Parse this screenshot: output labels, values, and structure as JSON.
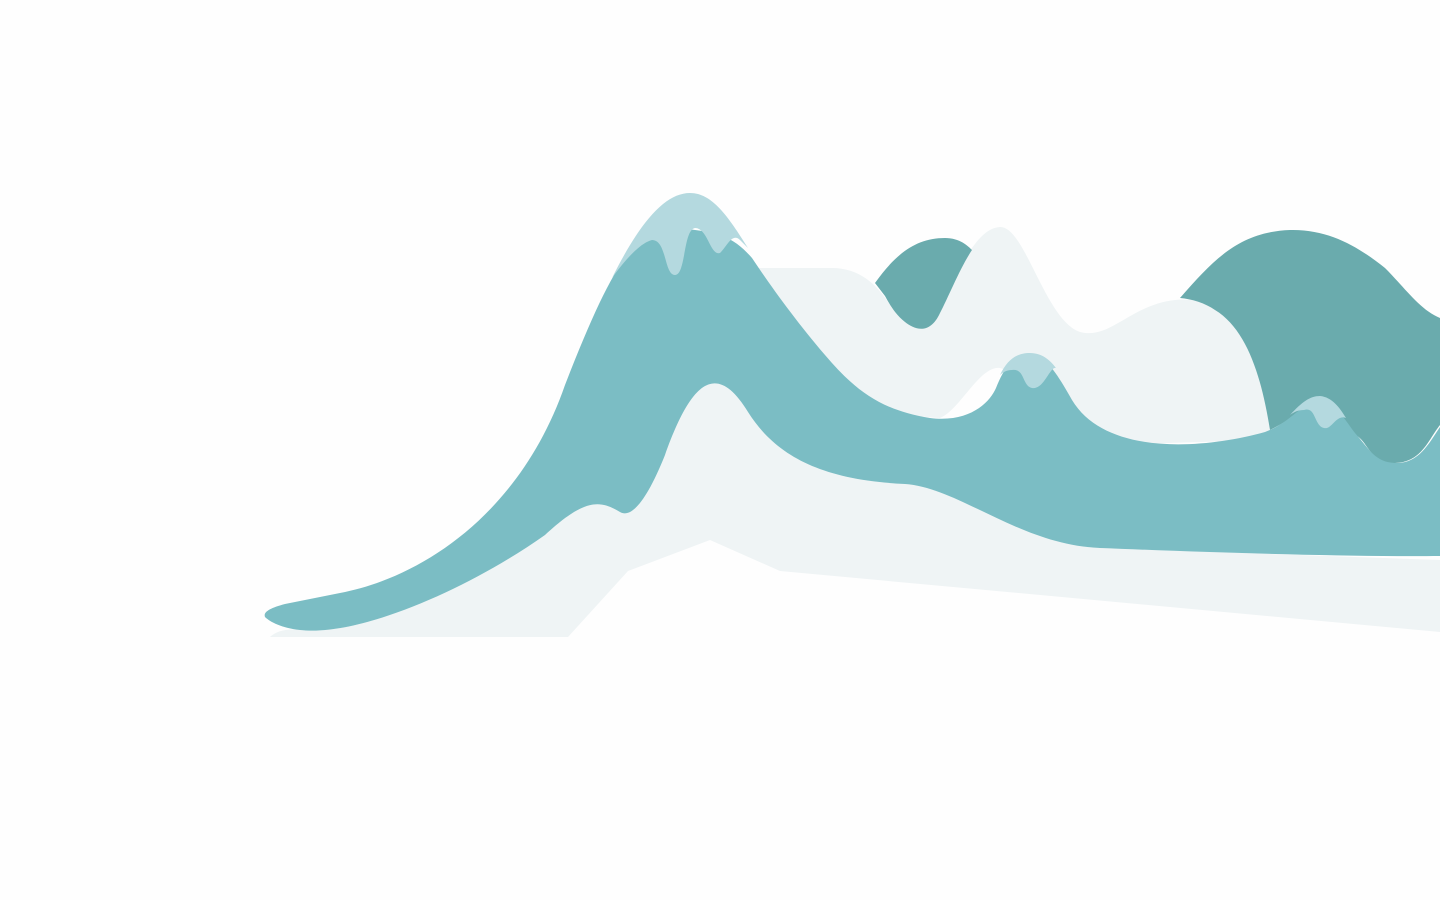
{
  "illustration": {
    "subject": "abstract-mountain-range",
    "colors": {
      "background": "#fefefe",
      "mist": "#eff4f5",
      "far_ridge": "#6aabad",
      "mid_ridge": "#7bbdc4",
      "snow_cap": "#b4d9df"
    }
  }
}
